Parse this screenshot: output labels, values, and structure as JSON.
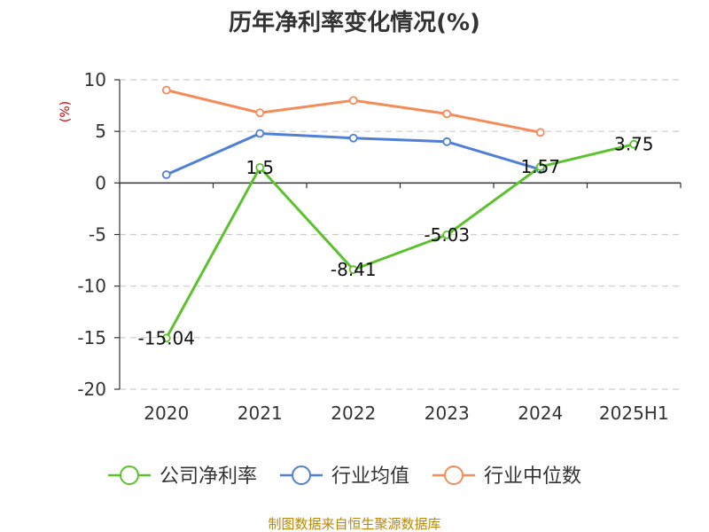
{
  "chart_data": {
    "type": "line",
    "title": "历年净利率变化情况(%)",
    "ylabel": "(%)",
    "xlabel": "",
    "categories": [
      "2020",
      "2021",
      "2022",
      "2023",
      "2024",
      "2025H1"
    ],
    "ylim": [
      -20,
      10
    ],
    "yticks": [
      10,
      5,
      0,
      -5,
      -10,
      -15,
      -20
    ],
    "grid": true,
    "legend_position": "bottom",
    "series": [
      {
        "name": "公司净利率",
        "color": "#5bc12c",
        "values": [
          -15.04,
          1.5,
          -8.41,
          -5.03,
          1.57,
          3.75
        ],
        "labels": [
          "-15.04",
          "1.5",
          "-8.41",
          "-5.03",
          "1.57",
          "3.75"
        ]
      },
      {
        "name": "行业均值",
        "color": "#4f7fd6",
        "values": [
          0.8,
          4.8,
          4.35,
          4.0,
          1.3,
          null
        ]
      },
      {
        "name": "行业中位数",
        "color": "#f48c5a",
        "values": [
          9.0,
          6.8,
          8.0,
          6.7,
          4.9,
          null
        ]
      }
    ]
  },
  "footer": {
    "source": "制图数据来自恒生聚源数据库"
  }
}
